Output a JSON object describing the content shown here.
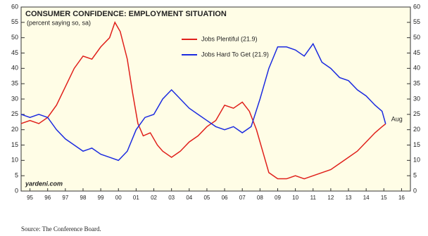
{
  "chart_data": {
    "type": "line",
    "title": "CONSUMER CONFIDENCE: EMPLOYMENT SITUATION",
    "subtitle": "(percent saying so, sa)",
    "source": "Source: The Conference Board.",
    "watermark": "yardeni.com",
    "end_label": "Aug",
    "xlim": [
      1995,
      2017
    ],
    "xticks": [
      {
        "value": 1995.5,
        "label": "95"
      },
      {
        "value": 1996.5,
        "label": "96"
      },
      {
        "value": 1997.5,
        "label": "97"
      },
      {
        "value": 1998.5,
        "label": "98"
      },
      {
        "value": 1999.5,
        "label": "99"
      },
      {
        "value": 2000.5,
        "label": "00"
      },
      {
        "value": 2001.5,
        "label": "01"
      },
      {
        "value": 2002.5,
        "label": "02"
      },
      {
        "value": 2003.5,
        "label": "03"
      },
      {
        "value": 2004.5,
        "label": "04"
      },
      {
        "value": 2005.5,
        "label": "05"
      },
      {
        "value": 2006.5,
        "label": "06"
      },
      {
        "value": 2007.5,
        "label": "07"
      },
      {
        "value": 2008.5,
        "label": "08"
      },
      {
        "value": 2009.5,
        "label": "09"
      },
      {
        "value": 2010.5,
        "label": "10"
      },
      {
        "value": 2011.5,
        "label": "11"
      },
      {
        "value": 2012.5,
        "label": "12"
      },
      {
        "value": 2013.5,
        "label": "13"
      },
      {
        "value": 2014.5,
        "label": "14"
      },
      {
        "value": 2015.5,
        "label": "15"
      },
      {
        "value": 2016.5,
        "label": "16"
      }
    ],
    "ylim": [
      0,
      60
    ],
    "yticks": [
      0,
      5,
      10,
      15,
      20,
      25,
      30,
      35,
      40,
      45,
      50,
      55,
      60
    ],
    "y2lim": [
      0,
      60
    ],
    "y2ticks": [
      0,
      5,
      10,
      15,
      20,
      25,
      30,
      35,
      40,
      45,
      50,
      55,
      60
    ],
    "grid": false,
    "series": [
      {
        "name": "Jobs Plentiful (21.9)",
        "color": "#e0201b",
        "x": [
          1995.0,
          1995.5,
          1996.0,
          1996.5,
          1997.0,
          1997.5,
          1998.0,
          1998.5,
          1999.0,
          1999.5,
          2000.0,
          2000.3,
          2000.6,
          2001.0,
          2001.3,
          2001.6,
          2001.9,
          2002.3,
          2002.7,
          2003.0,
          2003.5,
          2004.0,
          2004.5,
          2005.0,
          2005.5,
          2006.0,
          2006.5,
          2007.0,
          2007.5,
          2007.9,
          2008.3,
          2008.7,
          2009.0,
          2009.5,
          2010.0,
          2010.5,
          2011.0,
          2011.5,
          2012.0,
          2012.5,
          2013.0,
          2013.5,
          2014.0,
          2014.5,
          2015.0,
          2015.4,
          2015.6
        ],
        "values": [
          22,
          23,
          22,
          24,
          28,
          34,
          40,
          44,
          43,
          47,
          50,
          55,
          52,
          43,
          32,
          22,
          18,
          19,
          15,
          13,
          11,
          13,
          16,
          18,
          21,
          23,
          28,
          27,
          29,
          26,
          20,
          12,
          6,
          4,
          4,
          5,
          4,
          5,
          6,
          7,
          9,
          11,
          13,
          16,
          19,
          21,
          21.9
        ]
      },
      {
        "name": "Jobs Hard To Get (21.9)",
        "color": "#1c2be0",
        "x": [
          1995.0,
          1995.5,
          1996.0,
          1996.5,
          1997.0,
          1997.5,
          1998.0,
          1998.5,
          1999.0,
          1999.5,
          2000.0,
          2000.5,
          2001.0,
          2001.5,
          2002.0,
          2002.5,
          2003.0,
          2003.5,
          2004.0,
          2004.5,
          2005.0,
          2005.5,
          2006.0,
          2006.5,
          2007.0,
          2007.5,
          2008.0,
          2008.5,
          2009.0,
          2009.5,
          2010.0,
          2010.5,
          2011.0,
          2011.5,
          2012.0,
          2012.5,
          2013.0,
          2013.5,
          2014.0,
          2014.5,
          2015.0,
          2015.4,
          2015.6
        ],
        "values": [
          25,
          24,
          25,
          24,
          20,
          17,
          15,
          13,
          14,
          12,
          11,
          10,
          13,
          20,
          24,
          25,
          30,
          33,
          30,
          27,
          25,
          23,
          21,
          20,
          21,
          19,
          21,
          30,
          40,
          47,
          47,
          46,
          44,
          48,
          42,
          40,
          37,
          36,
          33,
          31,
          28,
          26,
          21.9
        ]
      }
    ]
  }
}
